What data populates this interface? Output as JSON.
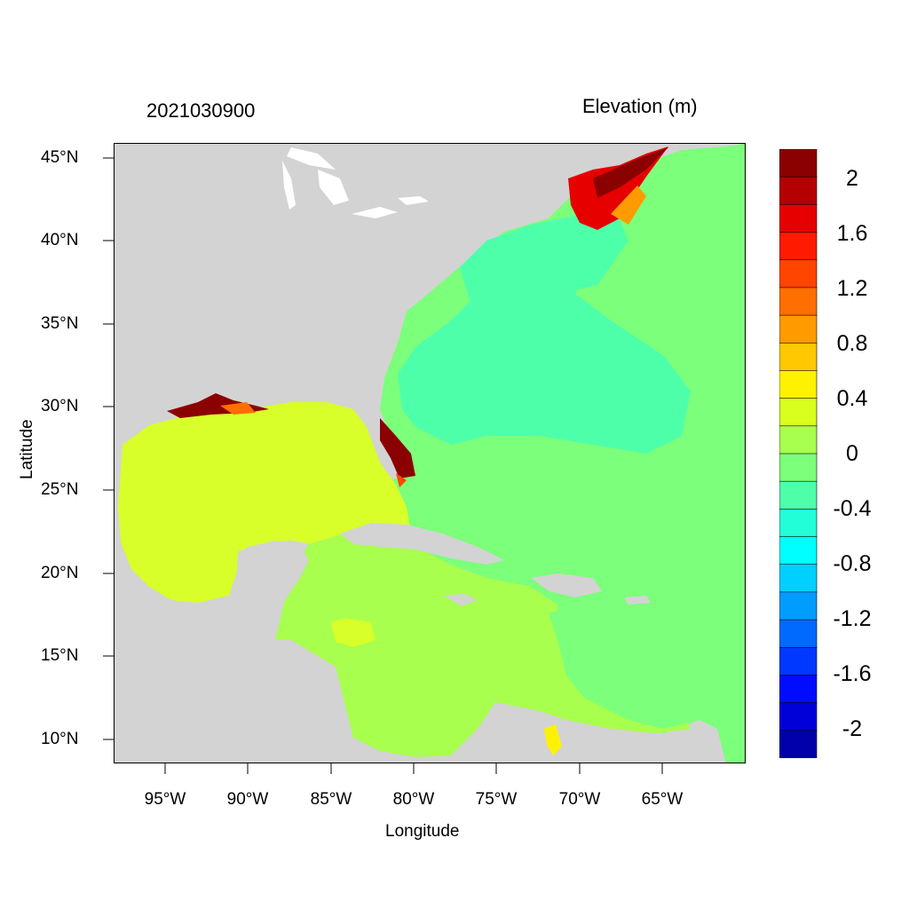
{
  "header": {
    "datetime": "2021030900",
    "variable": "Elevation (m)"
  },
  "axes": {
    "xlabel": "Longitude",
    "ylabel": "Latitude",
    "xticks": [
      "95°W",
      "90°W",
      "85°W",
      "80°W",
      "75°W",
      "70°W",
      "65°W"
    ],
    "yticks": [
      "45°N",
      "40°N",
      "35°N",
      "30°N",
      "25°N",
      "20°N",
      "15°N",
      "10°N"
    ],
    "lon_range": [
      -98,
      -60
    ],
    "lat_range": [
      8.5,
      46
    ]
  },
  "colorbar": {
    "labels": [
      "2",
      "1.6",
      "1.2",
      "0.8",
      "0.4",
      "0",
      "-0.4",
      "-0.8",
      "-1.2",
      "-1.6",
      "-2"
    ],
    "colors": [
      "#8b0000",
      "#b50000",
      "#e60000",
      "#ff1a00",
      "#ff4500",
      "#ff6e00",
      "#ff9a00",
      "#ffc800",
      "#fff200",
      "#d8ff1e",
      "#a8ff4e",
      "#7cff7a",
      "#4effaa",
      "#22ffd8",
      "#00ffff",
      "#00d0ff",
      "#009cff",
      "#006aff",
      "#0038ff",
      "#000cff",
      "#0000d8",
      "#0000aa"
    ]
  },
  "map": {
    "land_color": "#d3d3d3",
    "gulf_color": "#d8ff2a",
    "caribbean_color": "#a8ff4e",
    "atlantic_color": "#7cff7a",
    "coastal_band_color": "#4effaa",
    "surge_color": "#8b0000"
  }
}
